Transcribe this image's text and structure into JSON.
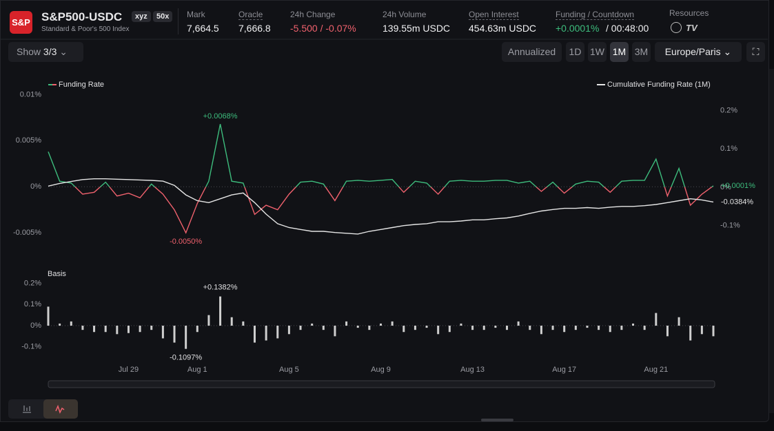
{
  "header": {
    "logo": "S&P",
    "symbol": "S&P500-USDC",
    "badges": [
      "xyz",
      "50x"
    ],
    "subtitle": "Standard & Poor's 500 Index",
    "stats": [
      {
        "label": "Mark",
        "value": "7,664.5"
      },
      {
        "label": "Oracle",
        "value": "7,666.8"
      },
      {
        "label": "24h Change",
        "value": "-5.500 / -0.07%"
      },
      {
        "label": "24h Volume",
        "value": "139.55m USDC"
      },
      {
        "label": "Open Interest",
        "value": "454.63m USDC"
      },
      {
        "label": "Funding / Countdown",
        "value": "+0.0001%",
        "extra": "/ 00:48:00"
      }
    ],
    "resources": "Resources"
  },
  "toolbar": {
    "show": "Show",
    "show_value": "3/3",
    "annualized": "Annualized",
    "ranges": [
      "1D",
      "1W",
      "1M",
      "3M"
    ],
    "active_range": "1M",
    "timezone": "Europe/Paris"
  },
  "chart_data": [
    {
      "type": "line",
      "ylim": [
        -0.007,
        0.0107
      ],
      "yticks": [
        {
          "value": 0.01,
          "label": "0.01%"
        },
        {
          "value": 0.005,
          "label": "0.005%"
        },
        {
          "value": 0,
          "label": "0%"
        },
        {
          "value": -0.005,
          "label": "-0.005%"
        }
      ],
      "y2lim": [
        -0.167,
        0.2585
      ],
      "y2ticks": [
        {
          "value": 0.2,
          "label": "0.2%"
        },
        {
          "value": 0.1,
          "label": "0.1%"
        },
        {
          "value": 0,
          "label": "0%"
        },
        {
          "value": -0.1,
          "label": "-0.1%"
        }
      ],
      "series": [
        {
          "name": "Funding Rate",
          "color": "#3dbd7d",
          "negative_color": "#f0616d",
          "max_label": "+0.0068%",
          "min_label": "-0.0050%",
          "last_label": "+0.0001%",
          "values": [
            0.0038,
            0.0006,
            0.0004,
            -0.0008,
            -0.0006,
            0.0005,
            -0.001,
            -0.0007,
            -0.0012,
            0.0003,
            -0.0008,
            -0.0025,
            -0.005,
            -0.0018,
            0.0006,
            0.0068,
            0.0006,
            0.0004,
            -0.003,
            -0.002,
            -0.0025,
            -0.0008,
            0.0005,
            0.0006,
            0.0003,
            -0.0015,
            0.0006,
            0.0007,
            0.0006,
            0.0007,
            0.0008,
            -0.0006,
            0.0006,
            0.0004,
            -0.0008,
            0.0006,
            0.0007,
            0.0006,
            0.0006,
            0.0007,
            0.0007,
            0.0004,
            0.0006,
            -0.0005,
            0.0005,
            -0.0007,
            0.0003,
            0.0006,
            0.0005,
            -0.0006,
            0.0006,
            0.0007,
            0.0007,
            0.003,
            -0.001,
            0.002,
            -0.002,
            -0.0008,
            0.0001
          ]
        },
        {
          "name": "Cumulative Funding Rate (1M)",
          "color": "#e6e6e6",
          "axis": "y2",
          "last_label": "-0.0384%",
          "values": [
            0.003,
            0.01,
            0.015,
            0.02,
            0.022,
            0.022,
            0.021,
            0.02,
            0.019,
            0.018,
            0.016,
            0.005,
            -0.02,
            -0.035,
            -0.04,
            -0.03,
            -0.02,
            -0.015,
            -0.04,
            -0.07,
            -0.095,
            -0.105,
            -0.11,
            -0.115,
            -0.115,
            -0.118,
            -0.12,
            -0.122,
            -0.115,
            -0.11,
            -0.105,
            -0.1,
            -0.097,
            -0.095,
            -0.09,
            -0.09,
            -0.088,
            -0.085,
            -0.085,
            -0.082,
            -0.08,
            -0.075,
            -0.068,
            -0.062,
            -0.058,
            -0.055,
            -0.055,
            -0.053,
            -0.055,
            -0.052,
            -0.05,
            -0.05,
            -0.048,
            -0.045,
            -0.04,
            -0.035,
            -0.03,
            -0.033,
            -0.0384
          ]
        }
      ]
    },
    {
      "type": "bar",
      "title": "Basis",
      "color": "#cfcfcf",
      "max_label": "+0.1382%",
      "min_label": "-0.1097%",
      "ylim": [
        -0.153,
        0.2215
      ],
      "yticks": [
        {
          "value": 0.2,
          "label": "0.2%"
        },
        {
          "value": 0.1,
          "label": "0.1%"
        },
        {
          "value": 0,
          "label": "0%"
        },
        {
          "value": -0.1,
          "label": "-0.1%"
        }
      ],
      "categories": [
        null,
        null,
        null,
        null,
        null,
        null,
        null,
        "Jul 29",
        null,
        null,
        null,
        null,
        null,
        "Aug 1",
        null,
        null,
        null,
        null,
        null,
        null,
        null,
        "Aug 5",
        null,
        null,
        null,
        null,
        null,
        null,
        null,
        "Aug 9",
        null,
        null,
        null,
        null,
        null,
        null,
        null,
        "Aug 13",
        null,
        null,
        null,
        null,
        null,
        null,
        null,
        "Aug 17",
        null,
        null,
        null,
        null,
        null,
        null,
        null,
        "Aug 21",
        null,
        null,
        null,
        null,
        null
      ],
      "values": [
        0.09,
        0.01,
        0.02,
        -0.02,
        -0.03,
        -0.03,
        -0.04,
        -0.035,
        -0.03,
        -0.02,
        -0.06,
        -0.08,
        -0.1097,
        -0.03,
        0.05,
        0.1382,
        0.04,
        0.02,
        -0.08,
        -0.07,
        -0.06,
        -0.04,
        -0.02,
        0.01,
        -0.02,
        -0.05,
        0.02,
        -0.01,
        -0.02,
        0.01,
        0.02,
        -0.03,
        -0.02,
        -0.01,
        -0.04,
        -0.03,
        0.01,
        -0.02,
        -0.02,
        -0.01,
        -0.02,
        0.02,
        -0.02,
        -0.04,
        -0.02,
        -0.03,
        -0.02,
        -0.01,
        -0.02,
        -0.03,
        -0.02,
        0.01,
        -0.02,
        0.06,
        -0.05,
        0.04,
        -0.07,
        -0.04,
        -0.05
      ]
    }
  ]
}
